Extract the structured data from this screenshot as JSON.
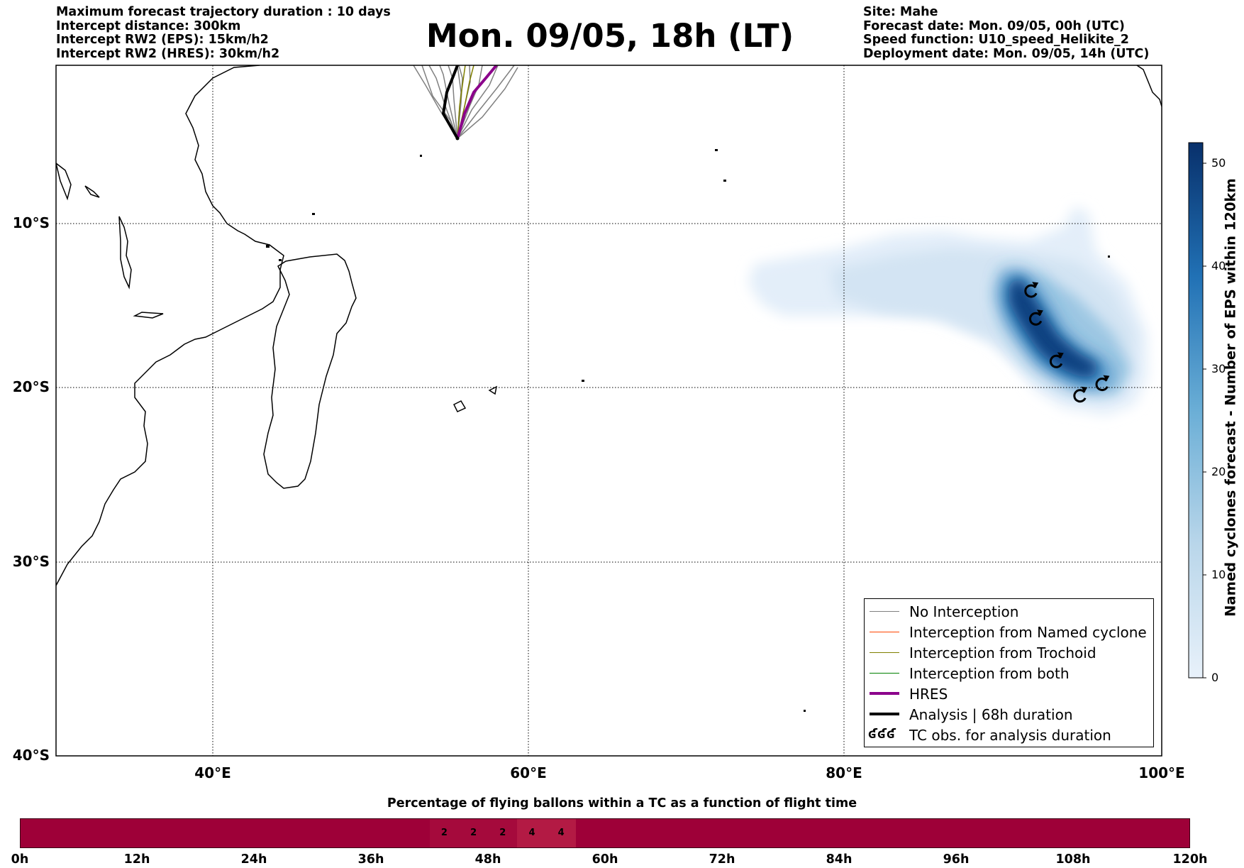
{
  "header_left": [
    "Maximum forecast trajectory duration : 10 days",
    "Intercept distance: 300km",
    "Intercept RW2 (EPS):  15km/h2",
    "Intercept RW2 (HRES): 30km/h2"
  ],
  "title": "Mon. 09/05, 18h (LT)",
  "header_right": [
    "Site: Mahe",
    "Forecast date: Mon. 09/05, 00h (UTC)",
    "Speed function: U10_speed_Helikite_2",
    "Deployment date: Mon. 09/05, 14h (UTC)"
  ],
  "map": {
    "lat_labels": [
      "10°S",
      "20°S",
      "30°S",
      "40°S"
    ],
    "lon_labels": [
      "40°E",
      "60°E",
      "80°E",
      "100°E"
    ],
    "lon_range": [
      30,
      100
    ],
    "lat_range": [
      -40,
      0.5
    ],
    "site": {
      "name": "Mahe",
      "lon": 55.5,
      "lat": -4.6
    },
    "tc_observations": [
      {
        "lon": 91.7,
        "lat": -13.3
      },
      {
        "lon": 92.0,
        "lat": -15.0
      },
      {
        "lon": 93.3,
        "lat": -17.6
      },
      {
        "lon": 94.8,
        "lat": -19.7
      },
      {
        "lon": 96.2,
        "lat": -19.0
      }
    ]
  },
  "colorbar": {
    "label": "Named cyclones forecast - Number of EPS within 120km",
    "ticks": [
      0,
      10,
      20,
      30,
      40,
      50
    ],
    "range": [
      0,
      52
    ],
    "color_low": "#e8f1fa",
    "color_high": "#08306b"
  },
  "legend": [
    {
      "label": "No Interception",
      "color": "#808080",
      "width": 1.5
    },
    {
      "label": "Interception from Named cyclone",
      "color": "#ff4500",
      "width": 1.5
    },
    {
      "label": "Interception from Trochoid",
      "color": "#808000",
      "width": 1.5
    },
    {
      "label": "Interception from both",
      "color": "#008000",
      "width": 1.5
    },
    {
      "label": "HRES",
      "color": "#8b008b",
      "width": 4
    },
    {
      "label": "Analysis | 68h duration",
      "color": "#000000",
      "width": 4
    },
    {
      "label": "TC obs. for analysis duration",
      "icon": "ʛʛʛ"
    }
  ],
  "timeline": {
    "title": "Percentage of flying ballons within a TC as a function of flight time",
    "ticks": [
      "0h",
      "12h",
      "24h",
      "36h",
      "48h",
      "60h",
      "72h",
      "84h",
      "96h",
      "108h",
      "120h"
    ],
    "max_hours": 120,
    "base_color": "#9e0038",
    "cells": [
      {
        "start_h": 42,
        "end_h": 45,
        "value": "2",
        "color": "#a50a3c"
      },
      {
        "start_h": 45,
        "end_h": 48,
        "value": "2",
        "color": "#a50a3c"
      },
      {
        "start_h": 48,
        "end_h": 51,
        "value": "2",
        "color": "#a50a3c"
      },
      {
        "start_h": 51,
        "end_h": 54,
        "value": "4",
        "color": "#b31a44"
      },
      {
        "start_h": 54,
        "end_h": 57,
        "value": "4",
        "color": "#b31a44"
      }
    ]
  }
}
